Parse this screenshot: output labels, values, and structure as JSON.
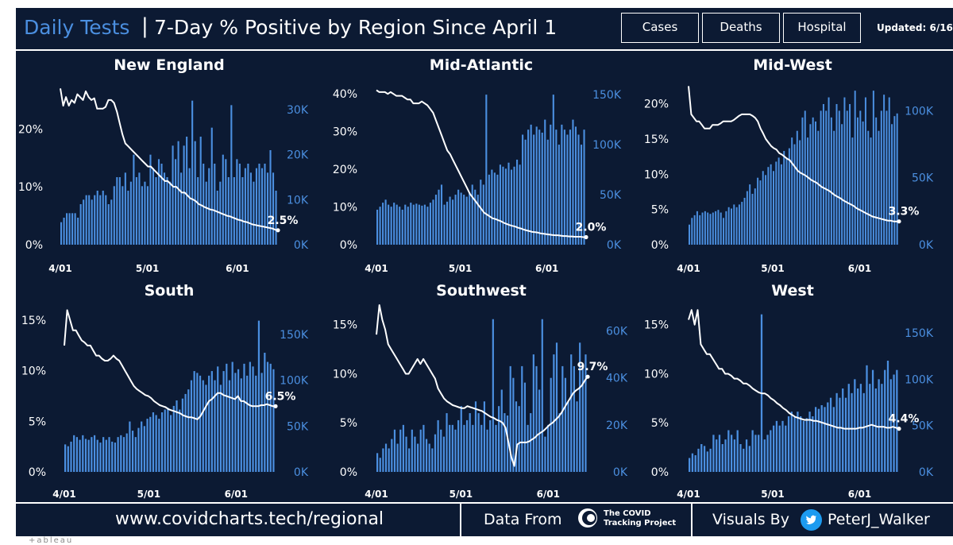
{
  "header": {
    "title_main": "Daily Tests",
    "title_sep": "|",
    "title_sub": "7-Day % Positive by Region Since April 1",
    "buttons": {
      "cases": "Cases",
      "deaths": "Deaths",
      "hospital": "Hospital"
    },
    "updated": "Updated: 6/16"
  },
  "footer": {
    "url": "www.covidcharts.tech/regional",
    "data_from": "Data From",
    "source_name_line1": "The COVID",
    "source_name_line2": "Tracking Project",
    "visuals_by": "Visuals By",
    "twitter_handle": "PeterJ_Walker"
  },
  "tableau_mark": "+ableau",
  "colors": {
    "background": "#0c1a33",
    "bar": "#4b8fe0",
    "line": "#ffffff",
    "title_accent": "#4b8fe0"
  },
  "chart_data": [
    {
      "type": "bar+line",
      "title": "New England",
      "x_ticks": [
        "4/01",
        "5/01",
        "6/01"
      ],
      "left_axis": {
        "ticks": [
          "0%",
          "10%",
          "20%"
        ],
        "values": [
          0,
          10,
          20
        ],
        "range": [
          0,
          28
        ]
      },
      "right_axis": {
        "ticks": [
          "0K",
          "10K",
          "20K",
          "30K"
        ],
        "values": [
          0,
          10,
          20,
          30
        ],
        "range": [
          0,
          36
        ]
      },
      "bar_series": {
        "name": "Daily Tests (K)",
        "values": [
          5,
          6,
          7,
          7,
          7,
          7,
          6,
          9,
          10,
          11,
          11,
          10,
          11,
          12,
          11,
          12,
          11,
          9,
          10,
          13,
          15,
          15,
          13,
          16,
          12,
          14,
          20,
          15,
          16,
          13,
          14,
          13,
          20,
          17,
          15,
          19,
          18,
          16,
          15,
          14,
          22,
          19,
          23,
          16,
          22,
          24,
          17,
          32,
          23,
          15,
          24,
          18,
          14,
          17,
          26,
          18,
          12,
          14,
          20,
          19,
          15,
          31,
          15,
          19,
          18,
          15,
          17,
          18,
          16,
          14,
          17,
          18,
          17,
          18,
          16,
          21,
          16,
          12
        ]
      },
      "line_series": {
        "name": "7-Day % Positive",
        "values": [
          27,
          24,
          25.5,
          24,
          25,
          24.5,
          26,
          25.5,
          25,
          26.5,
          25.5,
          25,
          25.3,
          23.5,
          23.5,
          23.5,
          23.8,
          25,
          25,
          24.5,
          23,
          21,
          19,
          17.5,
          17,
          16.5,
          16,
          15.5,
          15,
          14.5,
          14,
          13.5,
          13.5,
          13,
          12.5,
          12,
          11.5,
          11,
          11,
          10.5,
          10,
          10,
          9.5,
          9,
          9,
          8.5,
          8,
          7.8,
          7.5,
          7,
          6.8,
          6.5,
          6.3,
          6.1,
          6,
          5.8,
          5.6,
          5.4,
          5.2,
          5,
          4.9,
          4.7,
          4.5,
          4.3,
          4.2,
          4,
          3.9,
          3.7,
          3.5,
          3.4,
          3.3,
          3.2,
          3.1,
          3,
          2.9,
          2.8,
          2.6,
          2.5
        ]
      },
      "end_label": "2.5%"
    },
    {
      "type": "bar+line",
      "title": "Mid-Atlantic",
      "x_ticks": [
        "4/01",
        "5/01",
        "6/01"
      ],
      "left_axis": {
        "ticks": [
          "0%",
          "10%",
          "20%",
          "30%",
          "40%"
        ],
        "values": [
          0,
          10,
          20,
          30,
          40
        ],
        "range": [
          0,
          43
        ]
      },
      "right_axis": {
        "ticks": [
          "0K",
          "50K",
          "100K",
          "150K"
        ],
        "values": [
          0,
          50,
          100,
          150
        ],
        "range": [
          0,
          162
        ]
      },
      "bar_series": {
        "name": "Daily Tests (K)",
        "values": [
          35,
          38,
          42,
          45,
          40,
          38,
          42,
          40,
          38,
          35,
          40,
          38,
          42,
          40,
          41,
          40,
          39,
          40,
          38,
          42,
          45,
          50,
          55,
          60,
          40,
          43,
          48,
          45,
          50,
          55,
          52,
          50,
          48,
          52,
          60,
          55,
          50,
          65,
          60,
          150,
          70,
          75,
          72,
          70,
          80,
          78,
          76,
          82,
          75,
          78,
          85,
          80,
          110,
          105,
          115,
          120,
          110,
          118,
          115,
          112,
          125,
          105,
          120,
          150,
          115,
          100,
          120,
          115,
          110,
          115,
          125,
          118,
          110,
          100,
          115
        ]
      },
      "line_series": {
        "name": "7-Day % Positive",
        "values": [
          41,
          40.5,
          40.5,
          40.5,
          40,
          40.5,
          40,
          39.5,
          39.5,
          39.5,
          39,
          38.5,
          38.5,
          37.5,
          37.5,
          37.5,
          38,
          37.5,
          37,
          36,
          35,
          33,
          31,
          29,
          27,
          25,
          24,
          22.5,
          21,
          19.5,
          18,
          16.5,
          15,
          13.5,
          12.5,
          11.5,
          10.5,
          9.5,
          8.5,
          8,
          7.5,
          7,
          6.8,
          6.5,
          6.2,
          5.8,
          5.5,
          5.2,
          5,
          4.8,
          4.5,
          4.3,
          4,
          3.8,
          3.6,
          3.4,
          3.3,
          3.2,
          3,
          2.9,
          2.8,
          2.7,
          2.6,
          2.5,
          2.5,
          2.4,
          2.3,
          2.3,
          2.2,
          2.2,
          2.1,
          2.1,
          2.1,
          2,
          2
        ]
      },
      "end_label": "2.0%"
    },
    {
      "type": "bar+line",
      "title": "Mid-West",
      "x_ticks": [
        "4/01",
        "5/01",
        "6/01"
      ],
      "left_axis": {
        "ticks": [
          "0%",
          "5%",
          "10%",
          "15%",
          "20%"
        ],
        "values": [
          0,
          5,
          10,
          15,
          20
        ],
        "range": [
          0,
          23
        ]
      },
      "right_axis": {
        "ticks": [
          "0K",
          "50K",
          "100K"
        ],
        "values": [
          0,
          50,
          100
        ],
        "range": [
          0,
          121
        ]
      },
      "bar_series": {
        "name": "Daily Tests (K)",
        "values": [
          15,
          20,
          22,
          25,
          22,
          24,
          25,
          24,
          23,
          24,
          25,
          26,
          24,
          20,
          25,
          28,
          27,
          30,
          28,
          30,
          32,
          35,
          40,
          45,
          38,
          42,
          50,
          48,
          55,
          52,
          58,
          60,
          55,
          62,
          65,
          60,
          70,
          65,
          72,
          80,
          75,
          85,
          78,
          95,
          100,
          80,
          90,
          95,
          92,
          85,
          100,
          105,
          100,
          110,
          95,
          85,
          105,
          100,
          90,
          110,
          100,
          105,
          80,
          115,
          95,
          100,
          92,
          110,
          85,
          80,
          115,
          95,
          85,
          100,
          112,
          100,
          110,
          90,
          96,
          98
        ]
      },
      "line_series": {
        "name": "7-Day % Positive",
        "values": [
          22.5,
          18.5,
          18,
          17.5,
          17.5,
          17,
          16.5,
          16.5,
          16.5,
          17,
          17,
          17,
          17.2,
          17.5,
          17.5,
          17.5,
          17.5,
          17.7,
          18,
          18.3,
          18.5,
          18.5,
          18.5,
          18.5,
          18.3,
          18,
          17.5,
          16.5,
          15.8,
          15,
          14.5,
          14,
          13.7,
          13.5,
          13,
          12.8,
          12.5,
          12.2,
          12,
          11.5,
          11,
          10.5,
          10.2,
          10,
          9.8,
          9.5,
          9.2,
          9,
          8.8,
          8.5,
          8.2,
          8,
          7.8,
          7.6,
          7.3,
          7,
          6.8,
          6.6,
          6.3,
          6.1,
          5.9,
          5.7,
          5.5,
          5.2,
          5,
          4.8,
          4.6,
          4.4,
          4.2,
          4,
          3.9,
          3.8,
          3.7,
          3.6,
          3.5,
          3.4,
          3.4,
          3.3,
          3.3,
          3.3
        ]
      },
      "end_label": "3.3%"
    },
    {
      "type": "bar+line",
      "title": "South",
      "x_ticks": [
        "4/01",
        "5/01",
        "6/01"
      ],
      "left_axis": {
        "ticks": [
          "0%",
          "5%",
          "10%",
          "15%"
        ],
        "values": [
          0,
          5,
          10,
          15
        ],
        "range": [
          0,
          16.5
        ]
      },
      "right_axis": {
        "ticks": [
          "0K",
          "50K",
          "100K",
          "150K"
        ],
        "values": [
          0,
          50,
          100,
          150
        ],
        "range": [
          0,
          182
        ]
      },
      "bar_series": {
        "name": "Daily Tests (K)",
        "values": [
          30,
          28,
          33,
          40,
          38,
          35,
          40,
          36,
          35,
          38,
          40,
          35,
          32,
          38,
          35,
          38,
          33,
          32,
          38,
          40,
          38,
          42,
          55,
          45,
          38,
          48,
          55,
          50,
          58,
          60,
          65,
          62,
          58,
          65,
          68,
          70,
          62,
          72,
          78,
          68,
          80,
          85,
          90,
          100,
          110,
          108,
          105,
          100,
          95,
          105,
          110,
          100,
          115,
          95,
          110,
          118,
          100,
          120,
          108,
          112,
          102,
          118,
          105,
          120,
          115,
          105,
          165,
          108,
          130,
          120,
          118,
          112
        ]
      },
      "line_series": {
        "name": "7-Day % Positive",
        "values": [
          12.5,
          16,
          15,
          14,
          14,
          13.5,
          13,
          12.8,
          12.5,
          12.5,
          12,
          11.5,
          11.5,
          11.2,
          11,
          11,
          11.2,
          11.5,
          11.2,
          11,
          10.5,
          10,
          9.5,
          9,
          8.5,
          8.2,
          8,
          7.8,
          7.6,
          7.5,
          7.3,
          7,
          6.8,
          6.6,
          6.5,
          6.4,
          6.2,
          6.1,
          6,
          5.9,
          5.8,
          5.6,
          5.5,
          5.4,
          5.4,
          5.3,
          5.2,
          5.5,
          6,
          6.5,
          7,
          7.2,
          7.5,
          7.8,
          7.8,
          7.6,
          7.5,
          7.4,
          7.3,
          7.2,
          7.5,
          7,
          7,
          6.8,
          6.6,
          6.5,
          6.5,
          6.5,
          6.6,
          6.6,
          6.7,
          6.6,
          6.5,
          6.5
        ]
      },
      "end_label": "6.5%"
    },
    {
      "type": "bar+line",
      "title": "Southwest",
      "x_ticks": [
        "4/01",
        "5/01",
        "6/01"
      ],
      "left_axis": {
        "ticks": [
          "0%",
          "5%",
          "10%",
          "15%"
        ],
        "values": [
          0,
          5,
          10,
          15
        ],
        "range": [
          0,
          17
        ]
      },
      "right_axis": {
        "ticks": [
          "0K",
          "20K",
          "40K",
          "60K"
        ],
        "values": [
          0,
          20,
          40,
          60
        ],
        "range": [
          0,
          71
        ]
      },
      "bar_series": {
        "name": "Daily Tests (K)",
        "values": [
          8,
          6,
          10,
          12,
          10,
          14,
          18,
          12,
          18,
          20,
          15,
          10,
          18,
          15,
          12,
          18,
          20,
          14,
          12,
          10,
          16,
          22,
          18,
          15,
          25,
          20,
          20,
          18,
          22,
          28,
          20,
          22,
          25,
          20,
          30,
          25,
          20,
          30,
          18,
          22,
          65,
          20,
          28,
          35,
          25,
          24,
          45,
          40,
          30,
          28,
          45,
          38,
          20,
          25,
          50,
          45,
          35,
          65,
          15,
          20,
          40,
          50,
          55,
          25,
          45,
          40,
          30,
          50,
          45,
          30,
          55,
          45,
          50
        ]
      },
      "line_series": {
        "name": "7-Day % Positive",
        "values": [
          14,
          17,
          15.5,
          14.5,
          13,
          12.5,
          12,
          11.5,
          11,
          10.5,
          10,
          10,
          10.5,
          11,
          11.5,
          11,
          11.5,
          11,
          10.5,
          10,
          9.5,
          8.5,
          8,
          7.5,
          7.2,
          7,
          6.8,
          6.7,
          6.6,
          6.5,
          6.5,
          6.7,
          6.6,
          6.5,
          6.4,
          6.3,
          6.2,
          6,
          5.8,
          5.6,
          5.5,
          5.3,
          5.2,
          5,
          4.5,
          3,
          1.5,
          0.6,
          2.8,
          3,
          3,
          3,
          3.1,
          3.3,
          3.5,
          3.8,
          4,
          4.2,
          4.5,
          4.8,
          5,
          5.3,
          5.6,
          6,
          6.5,
          7,
          7.5,
          8,
          8.3,
          8.5,
          8.8,
          9.3,
          9.7
        ]
      },
      "end_label": "9.7%"
    },
    {
      "type": "bar+line",
      "title": "West",
      "x_ticks": [
        "4/01",
        "5/01",
        "6/01"
      ],
      "left_axis": {
        "ticks": [
          "0%",
          "5%",
          "10%",
          "15%"
        ],
        "values": [
          0,
          5,
          10,
          15
        ],
        "range": [
          0,
          17
        ]
      },
      "right_axis": {
        "ticks": [
          "0K",
          "50K",
          "100K",
          "150K"
        ],
        "values": [
          0,
          50,
          100,
          150
        ],
        "range": [
          0,
          180
        ]
      },
      "bar_series": {
        "name": "Daily Tests (K)",
        "values": [
          15,
          20,
          18,
          25,
          30,
          28,
          22,
          25,
          40,
          35,
          40,
          30,
          35,
          45,
          40,
          35,
          45,
          30,
          25,
          35,
          28,
          45,
          40,
          40,
          170,
          35,
          40,
          45,
          50,
          55,
          50,
          55,
          50,
          60,
          65,
          60,
          65,
          60,
          55,
          58,
          65,
          60,
          70,
          68,
          72,
          70,
          75,
          80,
          70,
          85,
          80,
          90,
          80,
          95,
          85,
          100,
          90,
          95,
          85,
          115,
          95,
          110,
          90,
          100,
          95,
          110,
          120,
          100,
          105,
          110
        ]
      },
      "line_series": {
        "name": "7-Day % Positive",
        "values": [
          15.5,
          16.5,
          15,
          16.5,
          13,
          12.5,
          12,
          12,
          11.5,
          11,
          10.5,
          10.5,
          10,
          10,
          9.8,
          9.5,
          9.5,
          9.3,
          9,
          9,
          8.8,
          8.5,
          8.3,
          8.1,
          8,
          8,
          7.8,
          7.5,
          7.3,
          7,
          6.8,
          6.5,
          6.3,
          6,
          5.8,
          5.6,
          5.5,
          5.4,
          5.3,
          5.3,
          5.3,
          5.2,
          5.2,
          5.1,
          5,
          4.9,
          4.8,
          4.7,
          4.6,
          4.5,
          4.5,
          4.4,
          4.4,
          4.4,
          4.4,
          4.4,
          4.5,
          4.5,
          4.6,
          4.7,
          4.8,
          4.7,
          4.6,
          4.6,
          4.6,
          4.5,
          4.5,
          4.6,
          4.5,
          4.4
        ]
      },
      "end_label": "4.4%"
    }
  ]
}
